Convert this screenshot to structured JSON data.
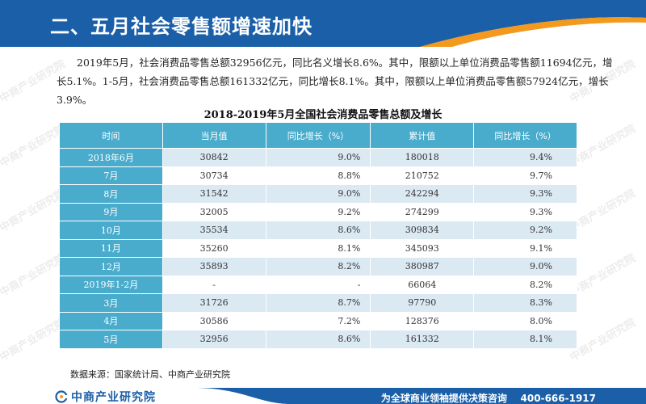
{
  "header": {
    "title": "二、五月社会零售额增速加快"
  },
  "watermark": {
    "text": "中商产业研究院"
  },
  "paragraph": {
    "text": "2019年5月，社会消费品零售总额32956亿元，同比名义增长8.6%。其中，限额以上单位消费品零售额11694亿元，增长5.1%。1-5月，社会消费品零售总额161332亿元，同比增长8.1%。其中，限额以上单位消费品零售额57924亿元，增长3.9%。"
  },
  "table": {
    "caption": "2018-2019年5月全国社会消费品零售总额及增长",
    "headers": [
      "时间",
      "当月值",
      "同比增长（%）",
      "累计值",
      "同比增长（%）"
    ],
    "rows": [
      [
        "2018年6月",
        "30842",
        "9.0%",
        "180018",
        "9.4%"
      ],
      [
        "7月",
        "30734",
        "8.8%",
        "210752",
        "9.7%"
      ],
      [
        "8月",
        "31542",
        "9.0%",
        "242294",
        "9.3%"
      ],
      [
        "9月",
        "32005",
        "9.2%",
        "274299",
        "9.3%"
      ],
      [
        "10月",
        "35534",
        "8.6%",
        "309834",
        "9.2%"
      ],
      [
        "11月",
        "35260",
        "8.1%",
        "345093",
        "9.1%"
      ],
      [
        "12月",
        "35893",
        "8.2%",
        "380987",
        "9.0%"
      ],
      [
        "2019年1-2月",
        "-",
        "-",
        "66064",
        "8.2%"
      ],
      [
        "3月",
        "31726",
        "8.7%",
        "97790",
        "8.3%"
      ],
      [
        "4月",
        "30586",
        "7.2%",
        "128376",
        "8.0%"
      ],
      [
        "5月",
        "32956",
        "8.6%",
        "161332",
        "8.1%"
      ]
    ]
  },
  "source": {
    "text": "数据来源：国家统计局、中商产业研究院"
  },
  "footer": {
    "logo_text": "中商产业研究院",
    "slogan": "为全球商业领袖提供决策咨询    400-666-1917"
  },
  "colors": {
    "header_blue": "#1a5fa8",
    "header_orange": "#f39a1e",
    "table_header": "#4aaccc",
    "row_stripe": "#dbe9f3",
    "footer_blue": "#1a5fa8"
  }
}
